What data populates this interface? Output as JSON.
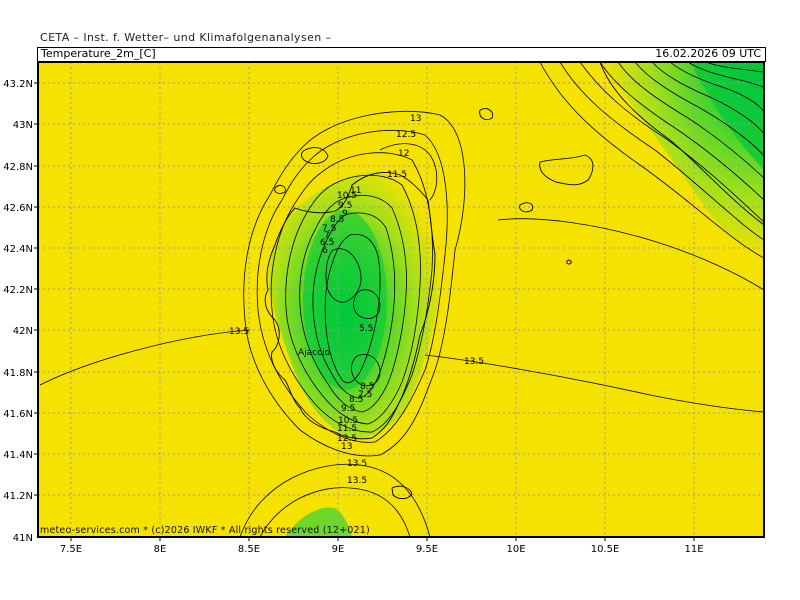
{
  "header": {
    "title": "CETA – Inst. f. Wetter– und Klimafolgenanalysen –",
    "parameter": "Temperature_2m_[C]",
    "valid_time": "16.02.2026 09 UTC"
  },
  "axes": {
    "lat_labels": [
      "43.2N",
      "43N",
      "42.8N",
      "42.6N",
      "42.4N",
      "42.2N",
      "42N",
      "41.8N",
      "41.6N",
      "41.4N",
      "41.2N",
      "41N"
    ],
    "lon_labels": [
      "7.5E",
      "8E",
      "8.5E",
      "9E",
      "9.5E",
      "10E",
      "10.5E",
      "11E"
    ]
  },
  "contour_labels": [
    "13",
    "12.5",
    "12",
    "11.5",
    "11",
    "10.5",
    "9.5",
    "9",
    "8.5",
    "7.5",
    "7",
    "6.5",
    "6",
    "5.5",
    "8.5",
    "7.5",
    "8.5",
    "9.5",
    "10.5",
    "11.5",
    "12.5",
    "13",
    "13.5",
    "13.5",
    "13.5",
    "13.5"
  ],
  "place_labels": [
    "Ajaccio"
  ],
  "footer": "meteo-services.com * (c)2026 IWKF * All rights reserved (12+021)",
  "colors": {
    "warm": "#f5e200",
    "cool": "#00c83c",
    "contour": "#000000",
    "grid": "#9a9a9a"
  }
}
